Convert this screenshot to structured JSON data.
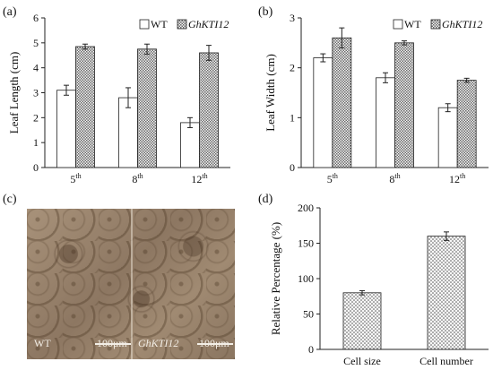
{
  "panels": {
    "a": {
      "label": "(a)"
    },
    "b": {
      "label": "(b)"
    },
    "c": {
      "label": "(c)",
      "left_tag": "WT",
      "right_tag": "GhKTI12",
      "scale_label": "100μm"
    },
    "d": {
      "label": "(d)"
    }
  },
  "colors": {
    "wt_fill": "#ffffff",
    "gh_fill": "#c8c8c8",
    "stroke": "#222222",
    "axis": "#222222"
  },
  "chart_data": [
    {
      "type": "bar",
      "panel": "a",
      "ylabel": "Leaf Length (cm)",
      "xlabel": "",
      "categories": [
        "5",
        "8",
        "12"
      ],
      "category_superscripts": [
        "th",
        "th",
        "th"
      ],
      "ylim": [
        0,
        6
      ],
      "yticks": [
        "0",
        "1",
        "2",
        "3",
        "4",
        "5",
        "6"
      ],
      "legend_position": "top-right",
      "series": [
        {
          "name": "WT",
          "values": [
            3.1,
            2.8,
            1.8
          ],
          "errors": [
            0.2,
            0.4,
            0.2
          ]
        },
        {
          "name": "GhKTI12",
          "values": [
            4.85,
            4.75,
            4.6
          ],
          "errors": [
            0.1,
            0.2,
            0.3
          ]
        }
      ]
    },
    {
      "type": "bar",
      "panel": "b",
      "ylabel": "Leaf Width (cm)",
      "xlabel": "",
      "categories": [
        "5",
        "8",
        "12"
      ],
      "category_superscripts": [
        "th",
        "th",
        "th"
      ],
      "ylim": [
        0,
        3
      ],
      "yticks": [
        "0",
        "1",
        "2",
        "3"
      ],
      "legend_position": "top-right",
      "series": [
        {
          "name": "WT",
          "values": [
            2.2,
            1.8,
            1.2
          ],
          "errors": [
            0.08,
            0.1,
            0.08
          ]
        },
        {
          "name": "GhKTI12",
          "values": [
            2.6,
            2.5,
            1.75
          ],
          "errors": [
            0.2,
            0.04,
            0.04
          ]
        }
      ]
    },
    {
      "type": "bar",
      "panel": "d",
      "ylabel": "Relative Percentage (%)",
      "xlabel": "",
      "categories": [
        "Cell size",
        "Cell number"
      ],
      "ylim": [
        0,
        200
      ],
      "yticks": [
        "0",
        "50",
        "100",
        "150",
        "200"
      ],
      "series": [
        {
          "name": "",
          "values": [
            80,
            160
          ],
          "errors": [
            3,
            6
          ]
        }
      ]
    }
  ]
}
